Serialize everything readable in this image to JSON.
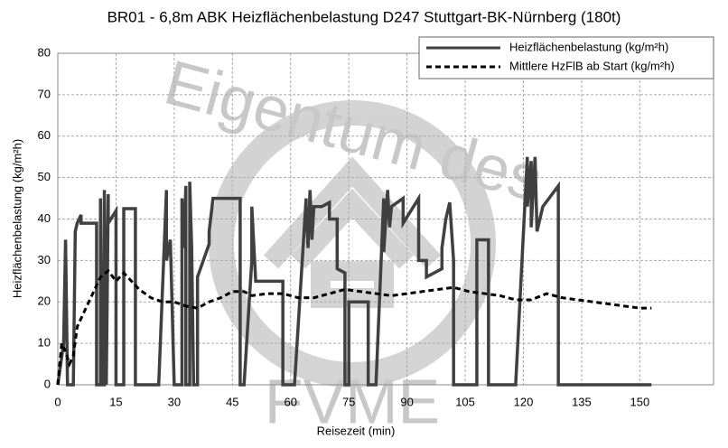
{
  "chart_data": {
    "type": "line",
    "title": "BR01 - 6,8m ABK Heizflächenbelastung D247 Stuttgart-BK-Nürnberg (180t)",
    "x_label": "Reisezeit (min)",
    "y_label": "Heizflächenbelastung (kg/m²h)",
    "watermark": [
      "Eigentum des",
      "FVME"
    ],
    "xlim": [
      0,
      169
    ],
    "ylim": [
      0,
      80
    ],
    "xticks": [
      0,
      15,
      30,
      45,
      60,
      75,
      90,
      105,
      120,
      135,
      150
    ],
    "yticks": [
      0,
      10,
      20,
      30,
      40,
      50,
      60,
      70,
      80
    ],
    "grid": true,
    "legend": "upper right",
    "series": [
      {
        "name": "Heizflächenbelastung (kg/m²h)",
        "color": "#404040",
        "style": "solid",
        "x": [
          0,
          1.5,
          2,
          2.5,
          4,
          4.5,
          5,
          6,
          6,
          10,
          10,
          11,
          11,
          11.5,
          12,
          12,
          12.5,
          13,
          13,
          15,
          15,
          17,
          17,
          20,
          20,
          26,
          28,
          28,
          29,
          30,
          32,
          32,
          32.5,
          33,
          33,
          34,
          34,
          34.5,
          35,
          36,
          36,
          39,
          39,
          40,
          47,
          47,
          48,
          50,
          50,
          51,
          58,
          58,
          61,
          64,
          64,
          64.5,
          65,
          65.5,
          66,
          68,
          70,
          70,
          72,
          72,
          74,
          74,
          75,
          75,
          80,
          80,
          82,
          84,
          84,
          85,
          85.5,
          86,
          89,
          89,
          93,
          93,
          95,
          95,
          99,
          99,
          100,
          101,
          102,
          102,
          108,
          108,
          111,
          111,
          118,
          121,
          121,
          122,
          122,
          123,
          123.5,
          125,
          129,
          129,
          153
        ],
        "values": [
          0,
          10,
          35,
          0,
          0,
          37,
          39,
          41,
          39,
          39,
          0,
          0,
          45,
          0,
          0,
          47,
          0,
          46,
          39,
          42,
          0,
          0,
          42.5,
          42.5,
          0,
          0,
          47,
          30,
          35,
          0,
          0,
          45,
          33,
          48,
          0,
          0,
          49,
          33,
          0,
          0,
          26,
          34,
          37,
          45,
          45,
          0,
          0,
          30,
          43,
          25,
          25,
          0,
          0,
          45,
          43,
          33,
          47,
          35,
          43,
          43,
          44,
          40,
          40,
          28,
          27,
          0,
          0,
          20,
          20,
          0,
          0,
          45,
          32,
          47,
          38,
          43,
          45,
          39,
          45,
          30,
          30,
          26,
          28,
          33,
          40,
          44,
          30,
          0,
          0,
          35,
          35,
          0,
          0,
          55,
          43,
          54,
          38,
          55,
          37,
          43,
          48,
          0,
          0
        ]
      },
      {
        "name": "Mittlere HzFlB ab Start (kg/m²h)",
        "color": "#000000",
        "style": "dashed",
        "x": [
          0,
          1,
          2,
          3,
          4,
          5,
          7,
          9,
          11,
          13,
          15,
          17,
          19,
          21,
          24,
          27,
          30,
          33,
          36,
          39,
          42,
          45,
          48,
          50,
          54,
          58,
          62,
          66,
          70,
          74,
          78,
          82,
          86,
          90,
          94,
          98,
          102,
          106,
          110,
          114,
          118,
          122,
          126,
          130,
          134,
          138,
          142,
          146,
          150,
          153
        ],
        "values": [
          0,
          10,
          8,
          5,
          7,
          14,
          18,
          22,
          26,
          27.5,
          25,
          27,
          25,
          23,
          21,
          20,
          20,
          19,
          18.5,
          20,
          21,
          22.5,
          22.5,
          21.5,
          22,
          22,
          21,
          21,
          22,
          23,
          22.5,
          22,
          21.5,
          22,
          22.5,
          23,
          23.5,
          22.5,
          22,
          21.5,
          20.5,
          20.5,
          22,
          21,
          20.5,
          20,
          19.5,
          19,
          18.5,
          18.5
        ]
      }
    ]
  }
}
